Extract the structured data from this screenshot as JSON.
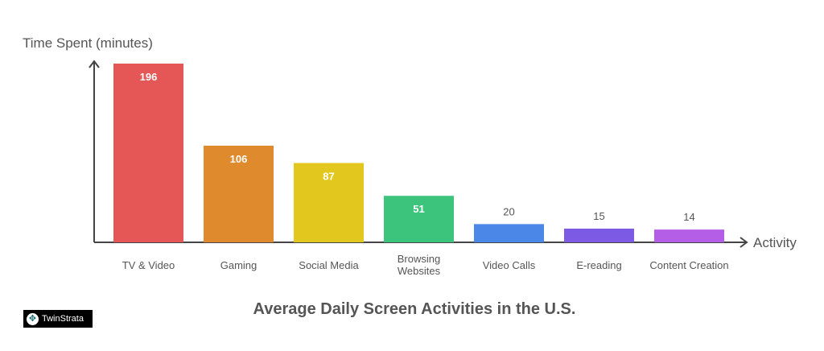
{
  "chart_data": {
    "type": "bar",
    "title": "Average Daily Screen Activities in the U.S.",
    "xlabel": "Activity",
    "ylabel": "Time Spent (minutes)",
    "categories": [
      "TV & Video",
      "Gaming",
      "Social Media",
      "Browsing Websites",
      "Video Calls",
      "E-reading",
      "Content Creation"
    ],
    "category_lines": [
      [
        "TV & Video"
      ],
      [
        "Gaming"
      ],
      [
        "Social Media"
      ],
      [
        "Browsing",
        "Websites"
      ],
      [
        "Video Calls"
      ],
      [
        "E-reading"
      ],
      [
        "Content Creation"
      ]
    ],
    "values": [
      196,
      106,
      87,
      51,
      20,
      15,
      14
    ],
    "colors": [
      "#e45756",
      "#e08a2e",
      "#e2c81e",
      "#3cc47c",
      "#4b87e6",
      "#7d5ae3",
      "#b45de6"
    ],
    "grid": false,
    "legend": "none"
  },
  "logo": {
    "text": "TwinStrata"
  }
}
